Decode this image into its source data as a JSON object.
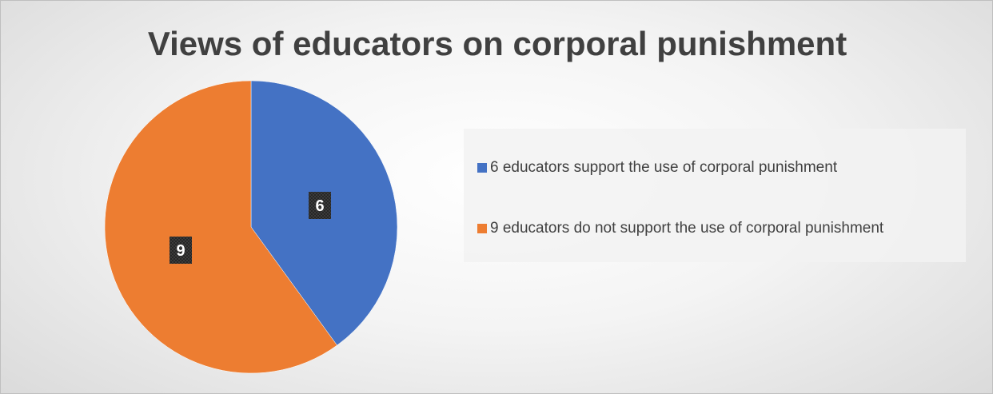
{
  "chart_data": {
    "type": "pie",
    "title": "Views of educators on corporal punishment",
    "categories": [
      "6 educators support the use of corporal punishment",
      "9 educators do not support the use of corporal punishment"
    ],
    "values": [
      6,
      9
    ],
    "data_labels": [
      "6",
      "9"
    ],
    "colors": [
      "#4472c4",
      "#ed7d31"
    ],
    "start_angle_deg": 0,
    "direction": "clockwise",
    "legend_position": "right"
  }
}
